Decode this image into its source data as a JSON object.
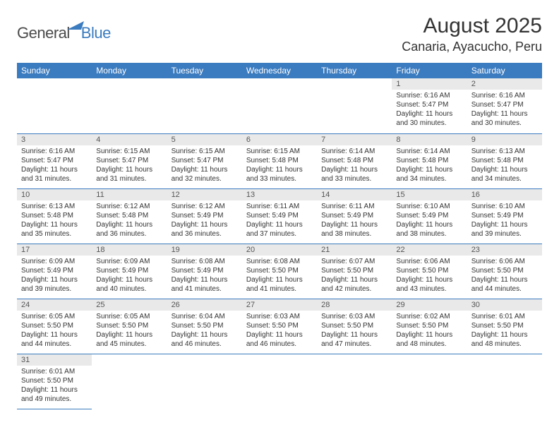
{
  "logo": {
    "general": "General",
    "blue": "Blue"
  },
  "title": "August 2025",
  "location": "Canaria, Ayacucho, Peru",
  "colors": {
    "header_bg": "#3b7bbf",
    "header_fg": "#ffffff",
    "daynum_bg": "#e9e9e9",
    "border": "#3b7bbf",
    "text": "#333333"
  },
  "dayNames": [
    "Sunday",
    "Monday",
    "Tuesday",
    "Wednesday",
    "Thursday",
    "Friday",
    "Saturday"
  ],
  "weeks": [
    [
      null,
      null,
      null,
      null,
      null,
      {
        "n": "1",
        "sr": "6:16 AM",
        "ss": "5:47 PM",
        "dl": "11 hours and 30 minutes."
      },
      {
        "n": "2",
        "sr": "6:16 AM",
        "ss": "5:47 PM",
        "dl": "11 hours and 30 minutes."
      }
    ],
    [
      {
        "n": "3",
        "sr": "6:16 AM",
        "ss": "5:47 PM",
        "dl": "11 hours and 31 minutes."
      },
      {
        "n": "4",
        "sr": "6:15 AM",
        "ss": "5:47 PM",
        "dl": "11 hours and 31 minutes."
      },
      {
        "n": "5",
        "sr": "6:15 AM",
        "ss": "5:47 PM",
        "dl": "11 hours and 32 minutes."
      },
      {
        "n": "6",
        "sr": "6:15 AM",
        "ss": "5:48 PM",
        "dl": "11 hours and 33 minutes."
      },
      {
        "n": "7",
        "sr": "6:14 AM",
        "ss": "5:48 PM",
        "dl": "11 hours and 33 minutes."
      },
      {
        "n": "8",
        "sr": "6:14 AM",
        "ss": "5:48 PM",
        "dl": "11 hours and 34 minutes."
      },
      {
        "n": "9",
        "sr": "6:13 AM",
        "ss": "5:48 PM",
        "dl": "11 hours and 34 minutes."
      }
    ],
    [
      {
        "n": "10",
        "sr": "6:13 AM",
        "ss": "5:48 PM",
        "dl": "11 hours and 35 minutes."
      },
      {
        "n": "11",
        "sr": "6:12 AM",
        "ss": "5:48 PM",
        "dl": "11 hours and 36 minutes."
      },
      {
        "n": "12",
        "sr": "6:12 AM",
        "ss": "5:49 PM",
        "dl": "11 hours and 36 minutes."
      },
      {
        "n": "13",
        "sr": "6:11 AM",
        "ss": "5:49 PM",
        "dl": "11 hours and 37 minutes."
      },
      {
        "n": "14",
        "sr": "6:11 AM",
        "ss": "5:49 PM",
        "dl": "11 hours and 38 minutes."
      },
      {
        "n": "15",
        "sr": "6:10 AM",
        "ss": "5:49 PM",
        "dl": "11 hours and 38 minutes."
      },
      {
        "n": "16",
        "sr": "6:10 AM",
        "ss": "5:49 PM",
        "dl": "11 hours and 39 minutes."
      }
    ],
    [
      {
        "n": "17",
        "sr": "6:09 AM",
        "ss": "5:49 PM",
        "dl": "11 hours and 39 minutes."
      },
      {
        "n": "18",
        "sr": "6:09 AM",
        "ss": "5:49 PM",
        "dl": "11 hours and 40 minutes."
      },
      {
        "n": "19",
        "sr": "6:08 AM",
        "ss": "5:49 PM",
        "dl": "11 hours and 41 minutes."
      },
      {
        "n": "20",
        "sr": "6:08 AM",
        "ss": "5:50 PM",
        "dl": "11 hours and 41 minutes."
      },
      {
        "n": "21",
        "sr": "6:07 AM",
        "ss": "5:50 PM",
        "dl": "11 hours and 42 minutes."
      },
      {
        "n": "22",
        "sr": "6:06 AM",
        "ss": "5:50 PM",
        "dl": "11 hours and 43 minutes."
      },
      {
        "n": "23",
        "sr": "6:06 AM",
        "ss": "5:50 PM",
        "dl": "11 hours and 44 minutes."
      }
    ],
    [
      {
        "n": "24",
        "sr": "6:05 AM",
        "ss": "5:50 PM",
        "dl": "11 hours and 44 minutes."
      },
      {
        "n": "25",
        "sr": "6:05 AM",
        "ss": "5:50 PM",
        "dl": "11 hours and 45 minutes."
      },
      {
        "n": "26",
        "sr": "6:04 AM",
        "ss": "5:50 PM",
        "dl": "11 hours and 46 minutes."
      },
      {
        "n": "27",
        "sr": "6:03 AM",
        "ss": "5:50 PM",
        "dl": "11 hours and 46 minutes."
      },
      {
        "n": "28",
        "sr": "6:03 AM",
        "ss": "5:50 PM",
        "dl": "11 hours and 47 minutes."
      },
      {
        "n": "29",
        "sr": "6:02 AM",
        "ss": "5:50 PM",
        "dl": "11 hours and 48 minutes."
      },
      {
        "n": "30",
        "sr": "6:01 AM",
        "ss": "5:50 PM",
        "dl": "11 hours and 48 minutes."
      }
    ],
    [
      {
        "n": "31",
        "sr": "6:01 AM",
        "ss": "5:50 PM",
        "dl": "11 hours and 49 minutes."
      },
      null,
      null,
      null,
      null,
      null,
      null
    ]
  ],
  "labels": {
    "sunrise": "Sunrise: ",
    "sunset": "Sunset: ",
    "daylight": "Daylight: "
  }
}
